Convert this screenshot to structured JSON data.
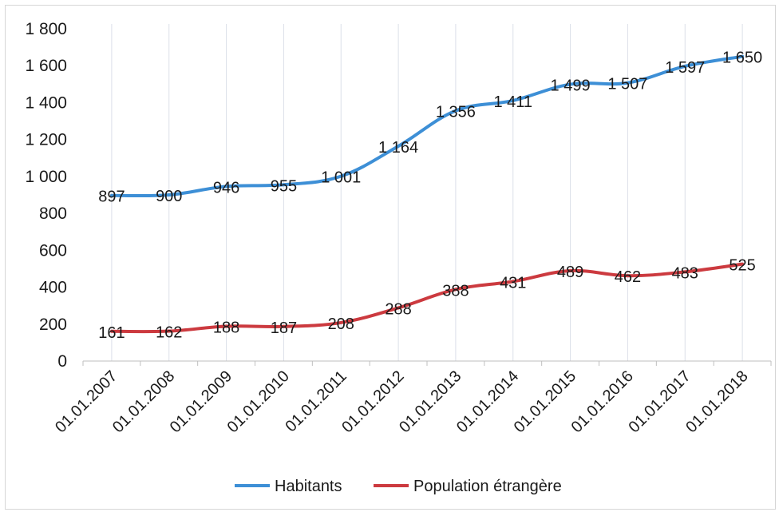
{
  "chart_data": {
    "type": "line",
    "title": "",
    "xlabel": "",
    "ylabel": "",
    "ylim": [
      0,
      1800
    ],
    "yticks": [
      "0",
      "200",
      "400",
      "600",
      "800",
      "1 000",
      "1 200",
      "1 400",
      "1 600",
      "1 800"
    ],
    "ytick_values": [
      0,
      200,
      400,
      600,
      800,
      1000,
      1200,
      1400,
      1600,
      1800
    ],
    "categories": [
      "01.01.2007",
      "01.01.2008",
      "01.01.2009",
      "01.01.2010",
      "01.01.2011",
      "01.01.2012",
      "01.01.2013",
      "01.01.2014",
      "01.01.2015",
      "01.01.2016",
      "01.01.2017",
      "01.01.2018"
    ],
    "grid": "vertical",
    "legend": "bottom",
    "series": [
      {
        "name": "Habitants",
        "color": "#3d8fd6",
        "values": [
          897,
          900,
          946,
          955,
          1001,
          1164,
          1356,
          1411,
          1499,
          1507,
          1597,
          1650
        ],
        "labels": [
          "897",
          "900",
          "946",
          "955",
          "1 001",
          "1 164",
          "1 356",
          "1 411",
          "1 499",
          "1 507",
          "1 597",
          "1 650"
        ]
      },
      {
        "name": "Population étrangère",
        "color": "#cc3a3f",
        "values": [
          161,
          162,
          188,
          187,
          208,
          288,
          388,
          431,
          489,
          462,
          483,
          525
        ],
        "labels": [
          "161",
          "162",
          "188",
          "187",
          "208",
          "288",
          "388",
          "431",
          "489",
          "462",
          "483",
          "525"
        ]
      }
    ]
  }
}
